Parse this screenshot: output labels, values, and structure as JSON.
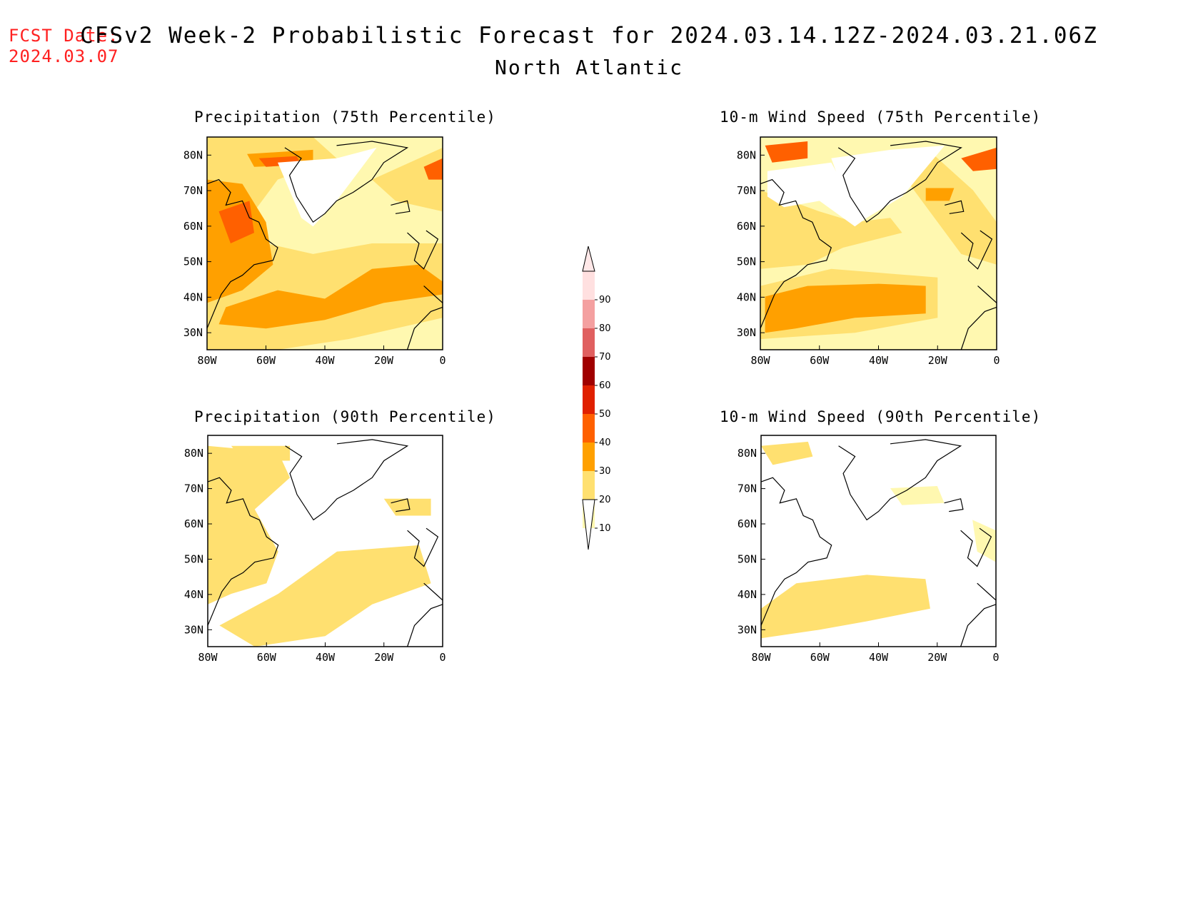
{
  "header": {
    "fcst_label": "FCST Date:",
    "fcst_date": "2024.03.07",
    "title": "CFSv2 Week-2 Probabilistic Forecast for 2024.03.14.12Z-2024.03.21.06Z",
    "region": "North Atlantic"
  },
  "panels": [
    {
      "id": "p75",
      "title": "Precipitation (75th Percentile)"
    },
    {
      "id": "p90",
      "title": "Precipitation (90th Percentile)"
    },
    {
      "id": "w75",
      "title": "10-m Wind Speed (75th Percentile)"
    },
    {
      "id": "w90",
      "title": "10-m Wind Speed (90th Percentile)"
    }
  ],
  "axes": {
    "lat_labels": [
      "80N",
      "70N",
      "60N",
      "50N",
      "40N",
      "30N"
    ],
    "lon_labels": [
      "80W",
      "60W",
      "40W",
      "20W",
      "0"
    ]
  },
  "colorbar": {
    "levels": [
      "10",
      "20",
      "30",
      "40",
      "50",
      "60",
      "70",
      "80",
      "90"
    ],
    "colors": [
      "#fff8b0",
      "#ffe070",
      "#ffa000",
      "#ff6000",
      "#e02000",
      "#a00000",
      "#e06060",
      "#f4a0a0",
      "#ffe0e0"
    ]
  }
}
